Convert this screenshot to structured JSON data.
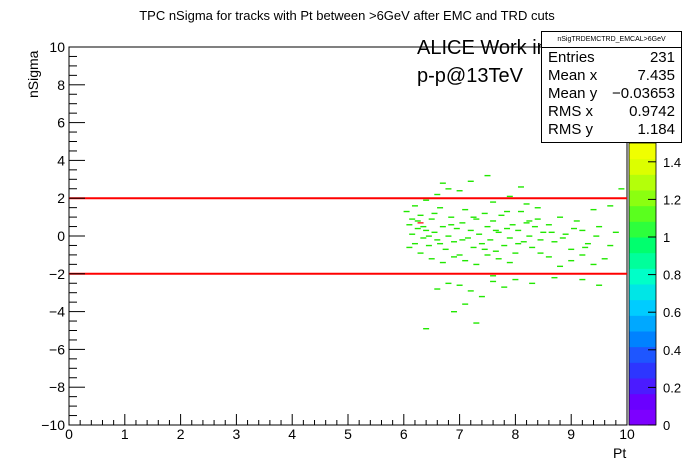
{
  "chart_data": {
    "type": "scatter",
    "title": "TPC nSigma for tracks with Pt between >6GeV after EMC and TRD cuts",
    "xlabel": "Pt",
    "ylabel": "nSigma",
    "xlim": [
      0,
      10
    ],
    "ylim": [
      -10,
      10
    ],
    "x_ticks": [
      "0",
      "1",
      "2",
      "3",
      "4",
      "5",
      "6",
      "7",
      "8",
      "9",
      "10"
    ],
    "y_ticks": [
      "−10",
      "−8",
      "−6",
      "−4",
      "−2",
      "0",
      "2",
      "4",
      "6",
      "8",
      "10"
    ],
    "cut_lines": [
      2,
      -2
    ],
    "cut_color": "#ff0000",
    "marker_color": "#21e800",
    "points": [
      [
        6.05,
        1.3
      ],
      [
        6.1,
        0.6
      ],
      [
        6.15,
        0.1
      ],
      [
        6.2,
        -0.4
      ],
      [
        6.25,
        0.8
      ],
      [
        6.3,
        1.1
      ],
      [
        6.35,
        -0.1
      ],
      [
        6.4,
        0.3
      ],
      [
        6.45,
        -0.5
      ],
      [
        6.5,
        0.9
      ],
      [
        6.55,
        0.2
      ],
      [
        6.6,
        -0.2
      ],
      [
        6.65,
        1.5
      ],
      [
        6.7,
        0.5
      ],
      [
        6.75,
        -0.7
      ],
      [
        6.8,
        0.0
      ],
      [
        6.85,
        1.0
      ],
      [
        6.9,
        -0.3
      ],
      [
        6.95,
        0.4
      ],
      [
        7.0,
        -1.0
      ],
      [
        7.05,
        0.7
      ],
      [
        7.1,
        1.4
      ],
      [
        7.15,
        -0.1
      ],
      [
        7.2,
        0.3
      ],
      [
        7.25,
        -0.6
      ],
      [
        7.3,
        0.9
      ],
      [
        7.35,
        0.1
      ],
      [
        7.4,
        -0.4
      ],
      [
        7.45,
        1.2
      ],
      [
        7.5,
        0.5
      ],
      [
        7.55,
        -0.2
      ],
      [
        7.6,
        0.8
      ],
      [
        7.65,
        -0.8
      ],
      [
        7.7,
        0.2
      ],
      [
        7.75,
        1.1
      ],
      [
        7.8,
        -0.5
      ],
      [
        7.85,
        0.4
      ],
      [
        7.9,
        -0.1
      ],
      [
        7.95,
        0.6
      ],
      [
        8.0,
        -0.9
      ],
      [
        8.05,
        0.3
      ],
      [
        8.1,
        1.3
      ],
      [
        8.15,
        -0.3
      ],
      [
        8.2,
        0.7
      ],
      [
        8.25,
        0.0
      ],
      [
        8.3,
        -0.6
      ],
      [
        8.35,
        0.5
      ],
      [
        8.4,
        0.9
      ],
      [
        8.45,
        -0.2
      ],
      [
        8.5,
        0.2
      ],
      [
        6.1,
        -0.6
      ],
      [
        6.3,
        -0.9
      ],
      [
        6.5,
        -1.2
      ],
      [
        6.7,
        -1.4
      ],
      [
        6.9,
        -1.1
      ],
      [
        7.1,
        -1.3
      ],
      [
        7.3,
        -1.5
      ],
      [
        7.5,
        -1.0
      ],
      [
        7.7,
        -1.2
      ],
      [
        7.9,
        -1.4
      ],
      [
        6.2,
        1.6
      ],
      [
        6.4,
        1.9
      ],
      [
        6.6,
        2.2
      ],
      [
        6.8,
        2.5
      ],
      [
        7.0,
        2.4
      ],
      [
        7.2,
        2.9
      ],
      [
        7.6,
        1.8
      ],
      [
        7.9,
        2.1
      ],
      [
        8.2,
        1.7
      ],
      [
        8.4,
        1.5
      ],
      [
        8.6,
        0.6
      ],
      [
        8.7,
        -0.3
      ],
      [
        8.8,
        1.0
      ],
      [
        8.9,
        0.1
      ],
      [
        9.0,
        -0.7
      ],
      [
        9.1,
        0.8
      ],
      [
        9.2,
        0.3
      ],
      [
        9.3,
        -0.4
      ],
      [
        9.4,
        1.4
      ],
      [
        9.5,
        0.5
      ],
      [
        8.6,
        -1.1
      ],
      [
        8.8,
        -1.6
      ],
      [
        9.0,
        -1.3
      ],
      [
        9.2,
        -1.0
      ],
      [
        9.4,
        -1.5
      ],
      [
        9.6,
        -1.2
      ],
      [
        9.7,
        -0.5
      ],
      [
        9.8,
        0.2
      ],
      [
        9.9,
        2.5
      ],
      [
        9.7,
        1.6
      ],
      [
        7.0,
        -2.6
      ],
      [
        7.2,
        -2.9
      ],
      [
        7.4,
        -3.2
      ],
      [
        7.6,
        -2.4
      ],
      [
        7.8,
        -2.7
      ],
      [
        8.0,
        -2.3
      ],
      [
        6.8,
        -2.5
      ],
      [
        6.6,
        -2.8
      ],
      [
        7.1,
        -3.6
      ],
      [
        7.3,
        -4.6
      ],
      [
        6.4,
        -4.9
      ],
      [
        6.9,
        -4.0
      ],
      [
        7.6,
        -2.1
      ],
      [
        8.3,
        -2.5
      ],
      [
        8.7,
        -2.2
      ],
      [
        9.2,
        -2.3
      ],
      [
        9.5,
        -2.6
      ],
      [
        8.1,
        2.6
      ],
      [
        7.5,
        3.2
      ],
      [
        6.7,
        2.8
      ],
      [
        6.25,
        0.4
      ],
      [
        6.45,
        0.0
      ],
      [
        6.65,
        -0.4
      ],
      [
        6.85,
        0.6
      ],
      [
        7.05,
        -0.2
      ],
      [
        7.25,
        1.0
      ],
      [
        7.45,
        -0.7
      ],
      [
        7.65,
        0.3
      ],
      [
        7.85,
        1.3
      ],
      [
        8.05,
        -0.4
      ],
      [
        8.25,
        0.8
      ],
      [
        8.45,
        -0.9
      ],
      [
        8.65,
        0.2
      ],
      [
        8.85,
        -0.1
      ],
      [
        9.05,
        0.4
      ],
      [
        9.25,
        -0.6
      ],
      [
        9.45,
        0.0
      ],
      [
        6.15,
        0.9
      ],
      [
        6.35,
        0.5
      ],
      [
        6.55,
        1.2
      ]
    ],
    "red_points": [
      [
        6.3,
        0.7
      ],
      [
        8.0,
        2.0
      ]
    ],
    "palette": {
      "colors": [
        "#7d00ff",
        "#6a00ff",
        "#4b1bff",
        "#2d36ff",
        "#1e56ff",
        "#0082ff",
        "#00a8ff",
        "#00ccff",
        "#00e6e6",
        "#00ffc8",
        "#00ff9b",
        "#00ff6e",
        "#2dff3c",
        "#5aff1e",
        "#8bff10",
        "#b4ff0a",
        "#dcff00",
        "#f0ff00"
      ],
      "labels": [
        "0",
        "0.2",
        "0.4",
        "0.6",
        "0.8",
        "1",
        "1.2",
        "1.4"
      ],
      "max": 1.5
    }
  },
  "stats": {
    "name": "nSigTRDEMCTRD_EMCAL>6GeV",
    "rows": [
      {
        "label": "Entries",
        "value": "231"
      },
      {
        "label": "Mean x",
        "value": "7.435"
      },
      {
        "label": "Mean y",
        "value": "−0.03653"
      },
      {
        "label": "RMS x",
        "value": "0.9742"
      },
      {
        "label": "RMS y",
        "value": "1.184"
      }
    ]
  },
  "labels": {
    "alice": "ALICE Work in Progress",
    "system": "p-p@13TeV"
  }
}
